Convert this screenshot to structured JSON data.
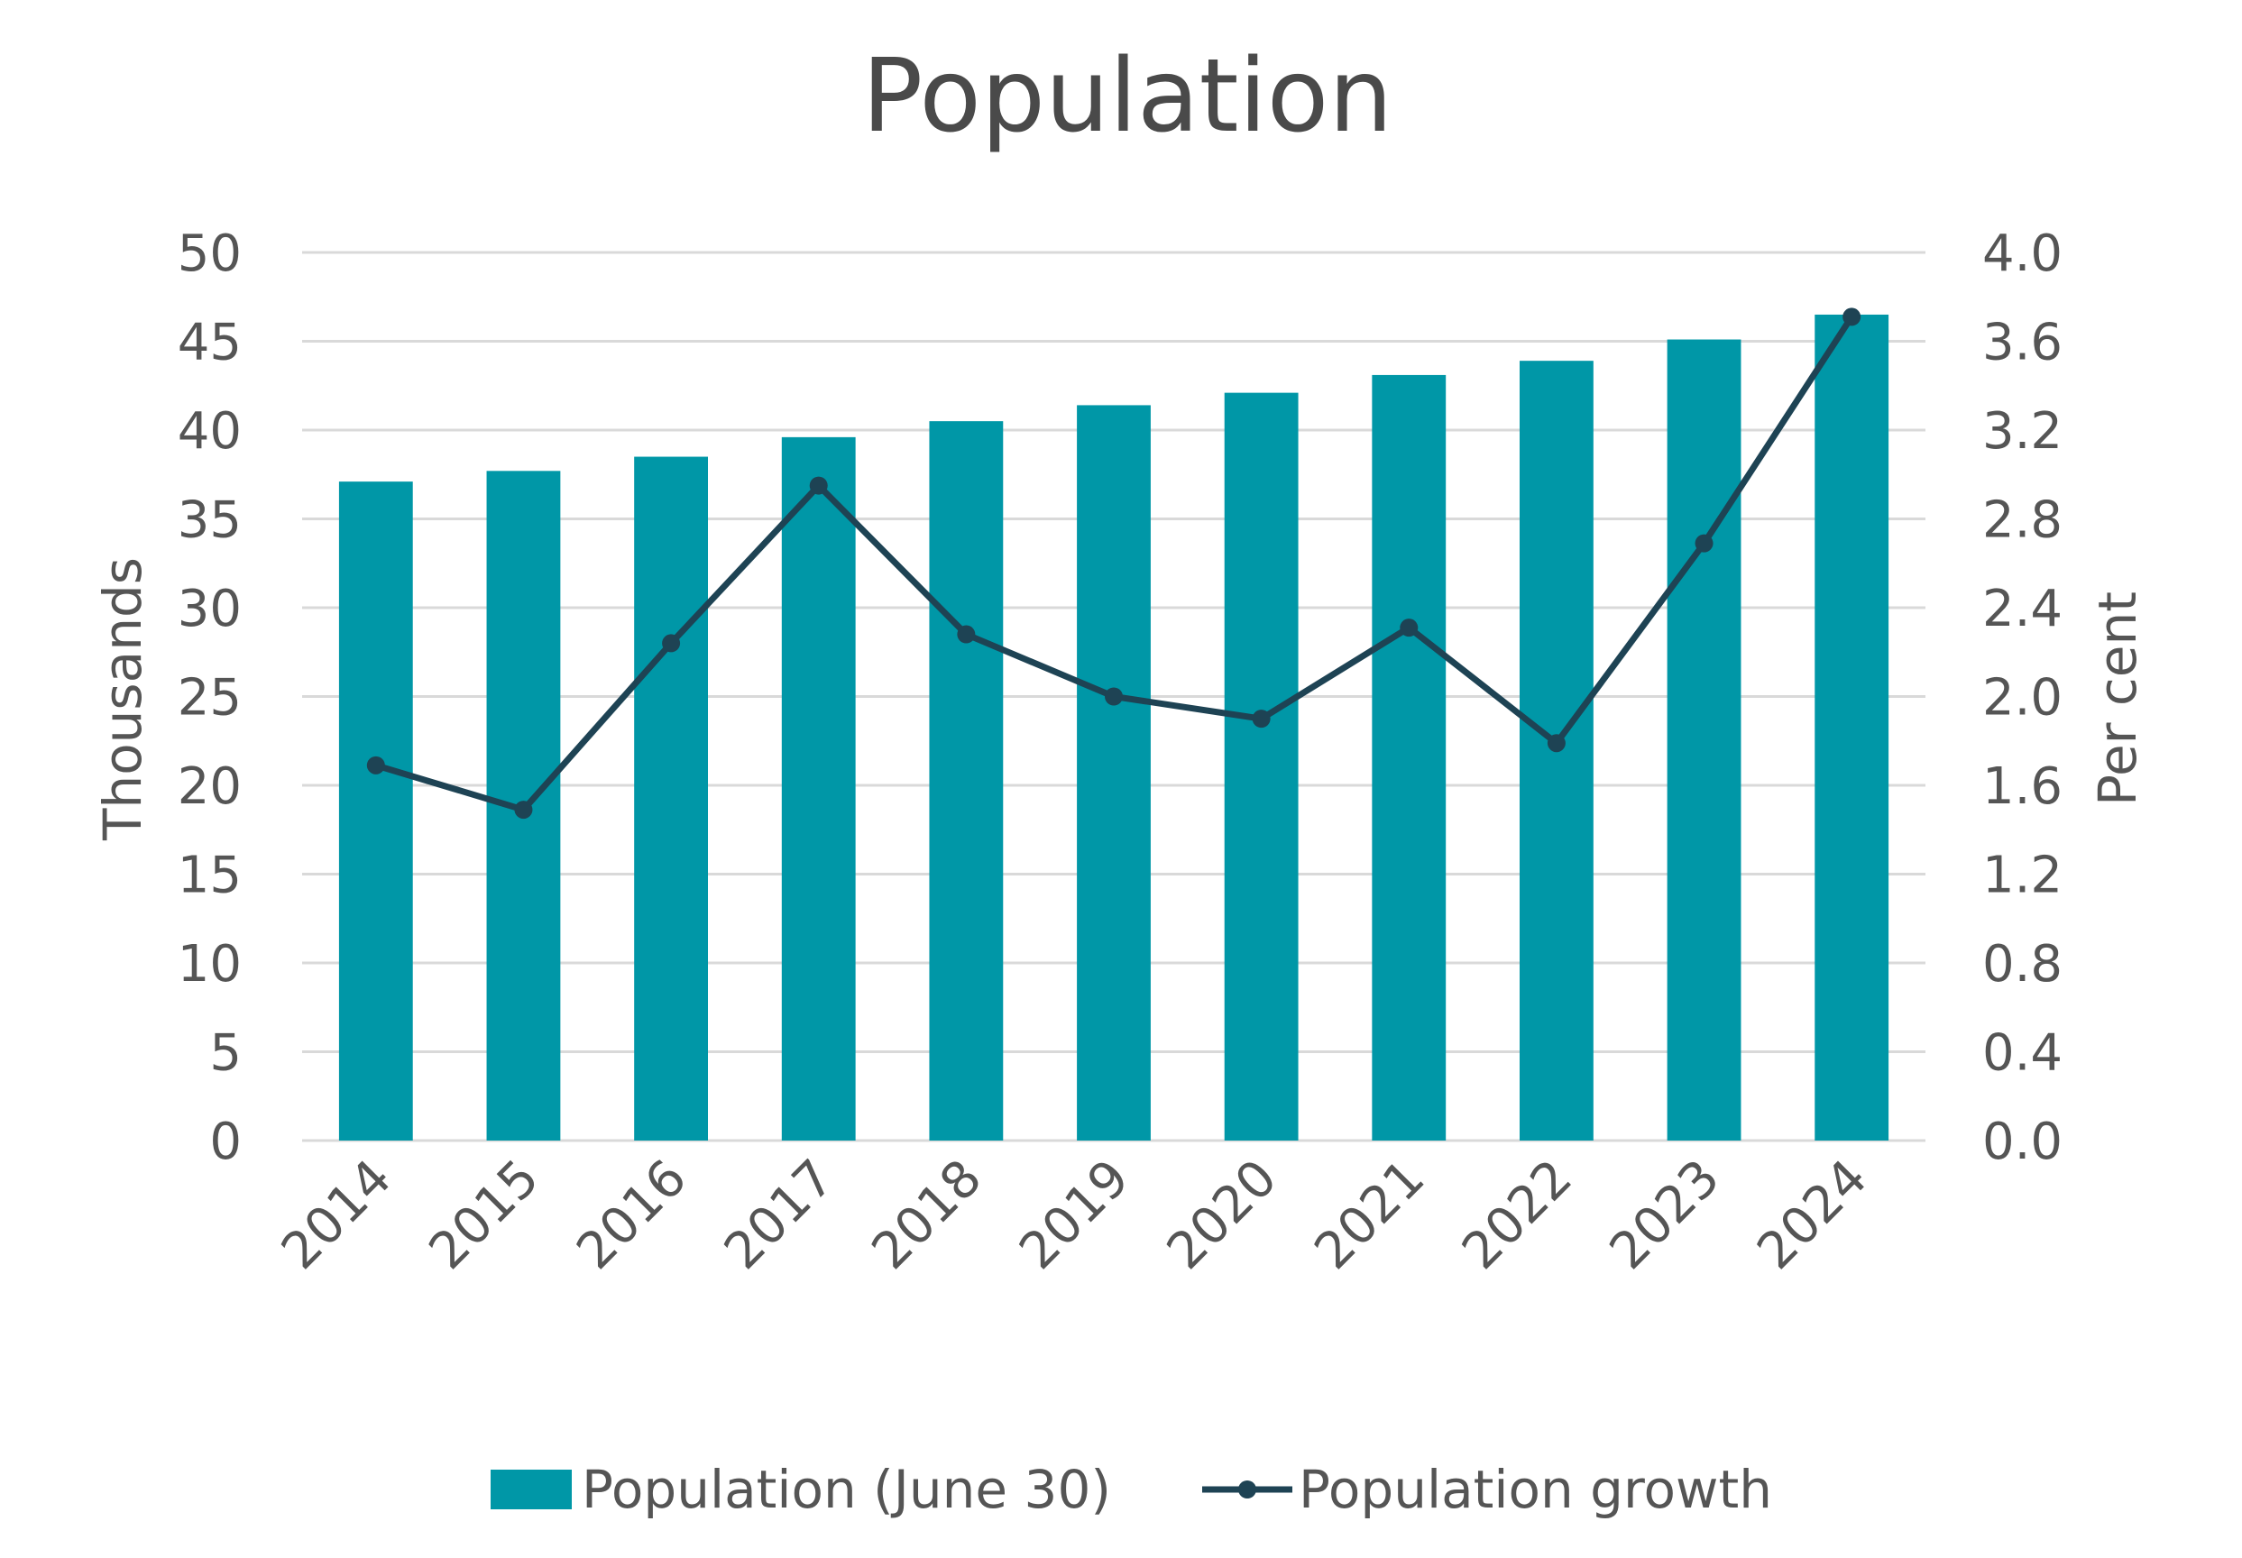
{
  "chart_data": {
    "type": "bar",
    "title": "Population",
    "categories": [
      "2014",
      "2015",
      "2016",
      "2017",
      "2018",
      "2019",
      "2020",
      "2021",
      "2022",
      "2023",
      "2024"
    ],
    "series": [
      {
        "name": "Population (June 30)",
        "type": "bar",
        "axis": "left",
        "color": "#0097A7",
        "values": [
          37.1,
          37.7,
          38.5,
          39.6,
          40.5,
          41.4,
          42.1,
          43.1,
          43.9,
          45.1,
          46.5
        ]
      },
      {
        "name": "Population growth",
        "type": "line",
        "axis": "right",
        "color": "#1E4354",
        "values": [
          1.69,
          1.49,
          2.24,
          2.95,
          2.28,
          2.0,
          1.9,
          2.31,
          1.79,
          2.69,
          3.71
        ]
      }
    ],
    "ylabel": "Thousands",
    "ylim": [
      0,
      50
    ],
    "y_ticks": [
      "0",
      "5",
      "10",
      "15",
      "20",
      "25",
      "30",
      "35",
      "40",
      "45",
      "50"
    ],
    "y2label": "Per cent",
    "y2lim": [
      0,
      4
    ],
    "y2_ticks": [
      "0.0",
      "0.4",
      "0.8",
      "1.2",
      "1.6",
      "2.0",
      "2.4",
      "2.8",
      "3.2",
      "3.6",
      "4.0"
    ],
    "grid": true,
    "legend": "bottom"
  }
}
